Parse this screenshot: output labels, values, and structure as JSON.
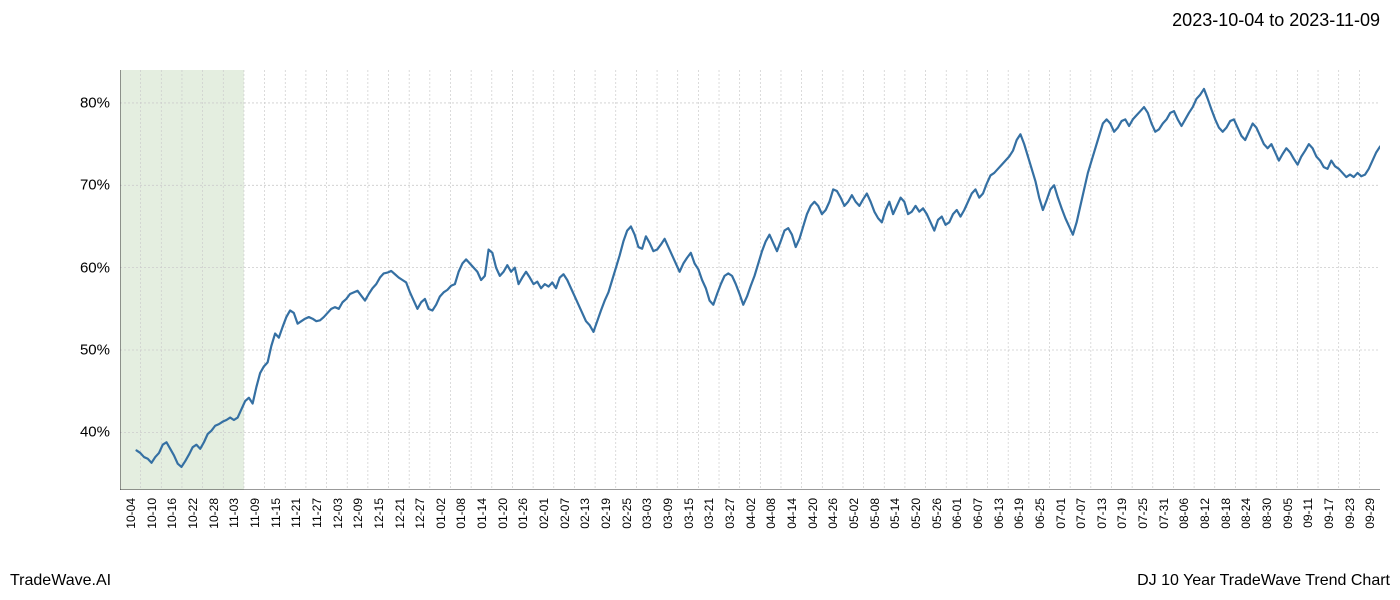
{
  "date_range": "2023-10-04 to 2023-11-09",
  "footer_left": "TradeWave.AI",
  "footer_right": "DJ 10 Year TradeWave Trend Chart",
  "chart": {
    "type": "line",
    "background_color": "#ffffff",
    "line_color": "#3570a3",
    "line_width": 2.2,
    "grid_color": "#cccccc",
    "highlight_fill": "#d6e5d0",
    "highlight_opacity": 0.65,
    "highlight_range": [
      0,
      6
    ],
    "axis_color": "#333333",
    "ylim": [
      33,
      84
    ],
    "y_ticks": [
      40,
      50,
      60,
      70,
      80
    ],
    "y_tick_labels": [
      "40%",
      "50%",
      "60%",
      "70%",
      "80%"
    ],
    "tick_fontsize": 15,
    "x_tick_fontsize": 12,
    "x_tick_labels": [
      "10-04",
      "10-10",
      "10-16",
      "10-22",
      "10-28",
      "11-03",
      "11-09",
      "11-15",
      "11-21",
      "11-27",
      "12-03",
      "12-09",
      "12-15",
      "12-21",
      "12-27",
      "01-02",
      "01-08",
      "01-14",
      "01-20",
      "01-26",
      "02-01",
      "02-07",
      "02-13",
      "02-19",
      "02-25",
      "03-03",
      "03-09",
      "03-15",
      "03-21",
      "03-27",
      "04-02",
      "04-08",
      "04-14",
      "04-20",
      "04-26",
      "05-02",
      "05-08",
      "05-14",
      "05-20",
      "05-26",
      "06-01",
      "06-07",
      "06-13",
      "06-19",
      "06-25",
      "07-01",
      "07-07",
      "07-13",
      "07-19",
      "07-25",
      "07-31",
      "08-06",
      "08-12",
      "08-18",
      "08-24",
      "08-30",
      "09-05",
      "09-11",
      "09-17",
      "09-23",
      "09-29"
    ],
    "x_first_pad": 0.8,
    "x_end_pad": 1.0,
    "data": [
      37.8,
      37.5,
      37.0,
      36.8,
      36.3,
      37.0,
      37.5,
      38.5,
      38.8,
      38.0,
      37.2,
      36.2,
      35.8,
      36.5,
      37.3,
      38.2,
      38.5,
      38.0,
      38.8,
      39.8,
      40.2,
      40.8,
      41.0,
      41.3,
      41.5,
      41.8,
      41.5,
      41.8,
      42.8,
      43.8,
      44.2,
      43.5,
      45.5,
      47.2,
      48.0,
      48.5,
      50.5,
      52.0,
      51.5,
      52.8,
      54.0,
      54.8,
      54.5,
      53.2,
      53.5,
      53.8,
      54.0,
      53.8,
      53.5,
      53.6,
      54.0,
      54.5,
      55.0,
      55.2,
      55.0,
      55.8,
      56.2,
      56.8,
      57.0,
      57.2,
      56.6,
      56.0,
      56.8,
      57.5,
      58.0,
      58.8,
      59.3,
      59.4,
      59.6,
      59.2,
      58.8,
      58.5,
      58.2,
      57.0,
      56.0,
      55.0,
      55.8,
      56.2,
      55.0,
      54.8,
      55.5,
      56.5,
      57.0,
      57.3,
      57.8,
      58.0,
      59.5,
      60.5,
      61.0,
      60.5,
      60.0,
      59.5,
      58.5,
      59.0,
      62.2,
      61.8,
      60.0,
      59.0,
      59.5,
      60.3,
      59.5,
      60.0,
      58.0,
      58.8,
      59.5,
      58.8,
      58.0,
      58.3,
      57.5,
      58.0,
      57.7,
      58.2,
      57.5,
      58.8,
      59.2,
      58.5,
      57.5,
      56.5,
      55.5,
      54.5,
      53.5,
      53.0,
      52.2,
      53.5,
      54.8,
      56.0,
      57.0,
      58.5,
      60.0,
      61.5,
      63.2,
      64.5,
      65.0,
      64.0,
      62.5,
      62.3,
      63.8,
      63.0,
      62.0,
      62.2,
      62.8,
      63.5,
      62.5,
      61.5,
      60.5,
      59.5,
      60.5,
      61.2,
      61.8,
      60.5,
      59.8,
      58.5,
      57.5,
      56.0,
      55.5,
      56.8,
      58.0,
      59.0,
      59.3,
      59.0,
      58.0,
      56.8,
      55.5,
      56.5,
      57.8,
      59.0,
      60.5,
      62.0,
      63.2,
      64.0,
      63.0,
      62.0,
      63.2,
      64.5,
      64.8,
      64.0,
      62.5,
      63.5,
      65.0,
      66.5,
      67.5,
      68.0,
      67.5,
      66.5,
      67.0,
      68.0,
      69.5,
      69.3,
      68.5,
      67.5,
      68.0,
      68.8,
      68.0,
      67.5,
      68.3,
      69.0,
      68.0,
      66.8,
      66.0,
      65.5,
      67.0,
      68.0,
      66.5,
      67.5,
      68.5,
      68.0,
      66.5,
      66.8,
      67.5,
      66.8,
      67.2,
      66.5,
      65.5,
      64.5,
      65.8,
      66.2,
      65.2,
      65.5,
      66.5,
      67.0,
      66.2,
      67.0,
      68.0,
      69.0,
      69.5,
      68.5,
      69.0,
      70.2,
      71.2,
      71.5,
      72.0,
      72.5,
      73.0,
      73.5,
      74.2,
      75.5,
      76.2,
      75.0,
      73.5,
      72.0,
      70.5,
      68.5,
      67.0,
      68.2,
      69.5,
      70.0,
      68.5,
      67.2,
      66.0,
      65.0,
      64.0,
      65.5,
      67.5,
      69.5,
      71.5,
      73.0,
      74.5,
      76.0,
      77.5,
      78.0,
      77.5,
      76.5,
      77.0,
      77.8,
      78.0,
      77.2,
      78.0,
      78.5,
      79.0,
      79.5,
      78.8,
      77.5,
      76.5,
      76.8,
      77.5,
      78.0,
      78.8,
      79.0,
      78.0,
      77.2,
      78.0,
      78.8,
      79.5,
      80.5,
      81.0,
      81.7,
      80.5,
      79.2,
      78.0,
      77.0,
      76.5,
      77.0,
      77.8,
      78.0,
      77.0,
      76.0,
      75.5,
      76.5,
      77.5,
      77.0,
      76.0,
      75.0,
      74.5,
      75.0,
      74.0,
      73.0,
      73.8,
      74.5,
      74.0,
      73.2,
      72.5,
      73.5,
      74.2,
      75.0,
      74.5,
      73.5,
      73.0,
      72.2,
      72.0,
      73.0,
      72.3,
      72.0,
      71.5,
      71.0,
      71.3,
      71.0,
      71.5,
      71.1,
      71.3,
      72.0,
      73.0,
      74.0,
      74.7
    ]
  }
}
